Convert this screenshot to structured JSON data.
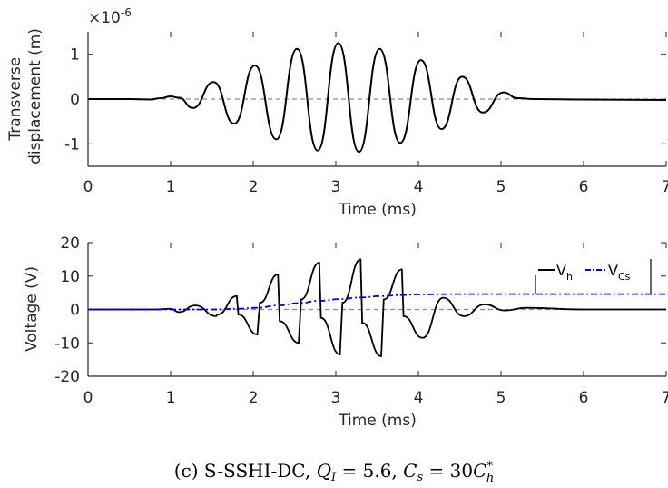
{
  "chart_data": [
    {
      "type": "line",
      "xlabel": "Time (ms)",
      "ylabel_line1": "Transverse",
      "ylabel_line2": "displacement (m)",
      "exponent_label": "×10",
      "exponent_power": "-6",
      "xlim": [
        0,
        7
      ],
      "ylim": [
        -1.5,
        1.5
      ],
      "xticks": [
        "0",
        "1",
        "2",
        "3",
        "4",
        "5",
        "6",
        "7"
      ],
      "yticks": [
        "1",
        "0",
        "-1"
      ],
      "ytick_values": [
        1,
        0,
        -1
      ],
      "zero_line": true,
      "series": [
        {
          "color": "#000000",
          "x": [
            0,
            0.5,
            0.75,
            0.88,
            1.0,
            1.1,
            1.27,
            1.52,
            1.77,
            2.02,
            2.28,
            2.53,
            2.78,
            3.03,
            3.28,
            3.53,
            3.78,
            4.03,
            4.28,
            4.53,
            4.78,
            5.03,
            5.2,
            5.4,
            6.0,
            7.0
          ],
          "y": [
            0,
            0,
            -0.01,
            0.02,
            0.06,
            0.03,
            -0.2,
            0.38,
            -0.55,
            0.75,
            -0.9,
            1.12,
            -1.15,
            1.25,
            -1.18,
            1.12,
            -0.98,
            0.87,
            -0.67,
            0.5,
            -0.3,
            0.15,
            0.02,
            0,
            -0.01,
            -0.02
          ]
        }
      ]
    },
    {
      "type": "line",
      "xlabel": "Time (ms)",
      "ylabel": "Voltage (V)",
      "xlim": [
        0,
        7
      ],
      "ylim": [
        -20,
        20
      ],
      "xticks": [
        "0",
        "1",
        "2",
        "3",
        "4",
        "5",
        "6",
        "7"
      ],
      "yticks": [
        "20",
        "10",
        "0",
        "-10",
        "-20"
      ],
      "ytick_values": [
        20,
        10,
        0,
        -10,
        -20
      ],
      "zero_line": true,
      "legend": {
        "placement": "top-right"
      },
      "series": [
        {
          "legend_main": "V",
          "legend_sub": "h",
          "color": "#000000",
          "style": "solid",
          "x": [
            0,
            0.8,
            1.0,
            1.1,
            1.3,
            1.55,
            1.57,
            1.8,
            1.82,
            2.05,
            2.08,
            2.3,
            2.32,
            2.55,
            2.58,
            2.8,
            2.82,
            3.05,
            3.08,
            3.3,
            3.32,
            3.55,
            3.58,
            3.8,
            3.82,
            4.05,
            4.3,
            4.55,
            4.8,
            5.05,
            5.3,
            6.0,
            7.0
          ],
          "y": [
            0,
            0,
            0.2,
            -0.8,
            1.2,
            -2.0,
            -1.5,
            4.0,
            -1.5,
            -7.5,
            2.0,
            10.5,
            -3.5,
            -10.0,
            3.0,
            14.0,
            -2.5,
            -13.5,
            2.0,
            15.0,
            -4.0,
            -14.0,
            3.0,
            12.0,
            -2.0,
            -8.5,
            3.5,
            -2.0,
            1.5,
            -0.3,
            0.5,
            0,
            0
          ]
        },
        {
          "legend_main": "V",
          "legend_sub": "Cs",
          "color": "#0000ee",
          "style": "dashdot",
          "x": [
            0,
            1.0,
            1.5,
            1.8,
            2.05,
            2.3,
            2.55,
            2.8,
            3.05,
            3.3,
            3.55,
            3.8,
            4.0,
            4.5,
            5.0,
            6.0,
            7.0
          ],
          "y": [
            0,
            0,
            0,
            0.2,
            0.5,
            1.2,
            1.9,
            2.6,
            3.1,
            3.6,
            4.0,
            4.3,
            4.5,
            4.6,
            4.6,
            4.6,
            4.6
          ]
        }
      ]
    }
  ],
  "caption": {
    "prefix": "(c) S-SSHI-DC, ",
    "q_symbol": "Q",
    "q_sub": "I",
    "q_value": " = 5.6,  ",
    "c_symbol": "C",
    "c_sub": "s",
    "c_eq": " = 30",
    "c2_symbol": "C",
    "c2_sup": "*",
    "c2_sub": "h"
  }
}
